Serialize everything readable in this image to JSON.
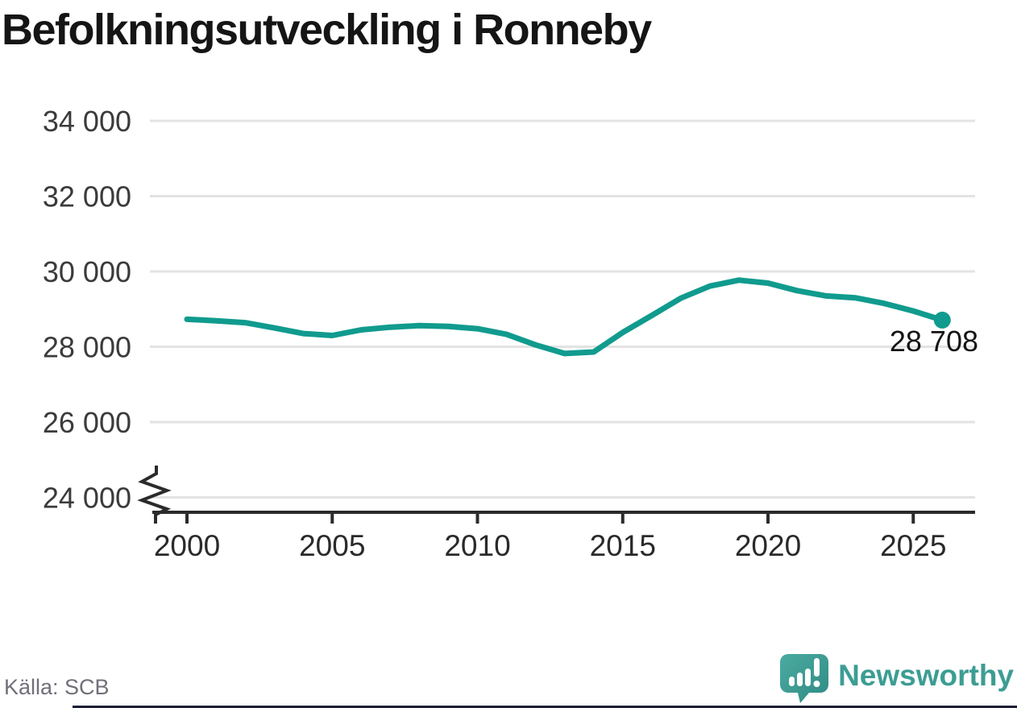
{
  "title": "Befolkningsutveckling i Ronneby",
  "source": {
    "label": "Källa: SCB"
  },
  "branding": {
    "label": "Newsworthy",
    "logo_icon": "newsworthy-speech-bubble-bar-chart-icon"
  },
  "colors": {
    "line": "#109B8E",
    "grid": "#E3E3E3",
    "axis": "#2B2B2B",
    "y_tick_label": "#3B3B3B",
    "x_tick_label": "#2A2A2A",
    "annotation": "#141414",
    "source_text": "#70707A",
    "brand": "#3C9D93",
    "brand_light": "#4BABA1",
    "brand_dark": "#2F8B84",
    "bottom_bar": "#1B1E34"
  },
  "chart_data": {
    "type": "line",
    "title": "Befolkningsutveckling i Ronneby",
    "x": [
      2000,
      2001,
      2002,
      2003,
      2004,
      2005,
      2006,
      2007,
      2008,
      2009,
      2010,
      2011,
      2012,
      2013,
      2014,
      2015,
      2016,
      2017,
      2018,
      2019,
      2020,
      2021,
      2022,
      2023,
      2024,
      2025,
      2026
    ],
    "series": [
      {
        "name": "Befolkning",
        "values": [
          28730,
          28690,
          28640,
          28500,
          28350,
          28300,
          28450,
          28520,
          28560,
          28540,
          28480,
          28330,
          28050,
          27820,
          27860,
          28380,
          28830,
          29290,
          29610,
          29770,
          29690,
          29490,
          29350,
          29300,
          29150,
          28950,
          28708
        ]
      }
    ],
    "end_value": 28708,
    "end_label": "28 708",
    "x_ticks": [
      2000,
      2005,
      2010,
      2015,
      2020,
      2025
    ],
    "y_ticks": [
      {
        "value": 34000,
        "label": "34 000"
      },
      {
        "value": 32000,
        "label": "32 000"
      },
      {
        "value": 30000,
        "label": "30 000"
      },
      {
        "value": 28000,
        "label": "28 000"
      },
      {
        "value": 26000,
        "label": "26 000"
      },
      {
        "value": 24000,
        "label": "24 000"
      }
    ],
    "ylim": [
      24000,
      34000
    ],
    "axis_break": true,
    "grid": "horizontal-only",
    "legend": "none"
  }
}
